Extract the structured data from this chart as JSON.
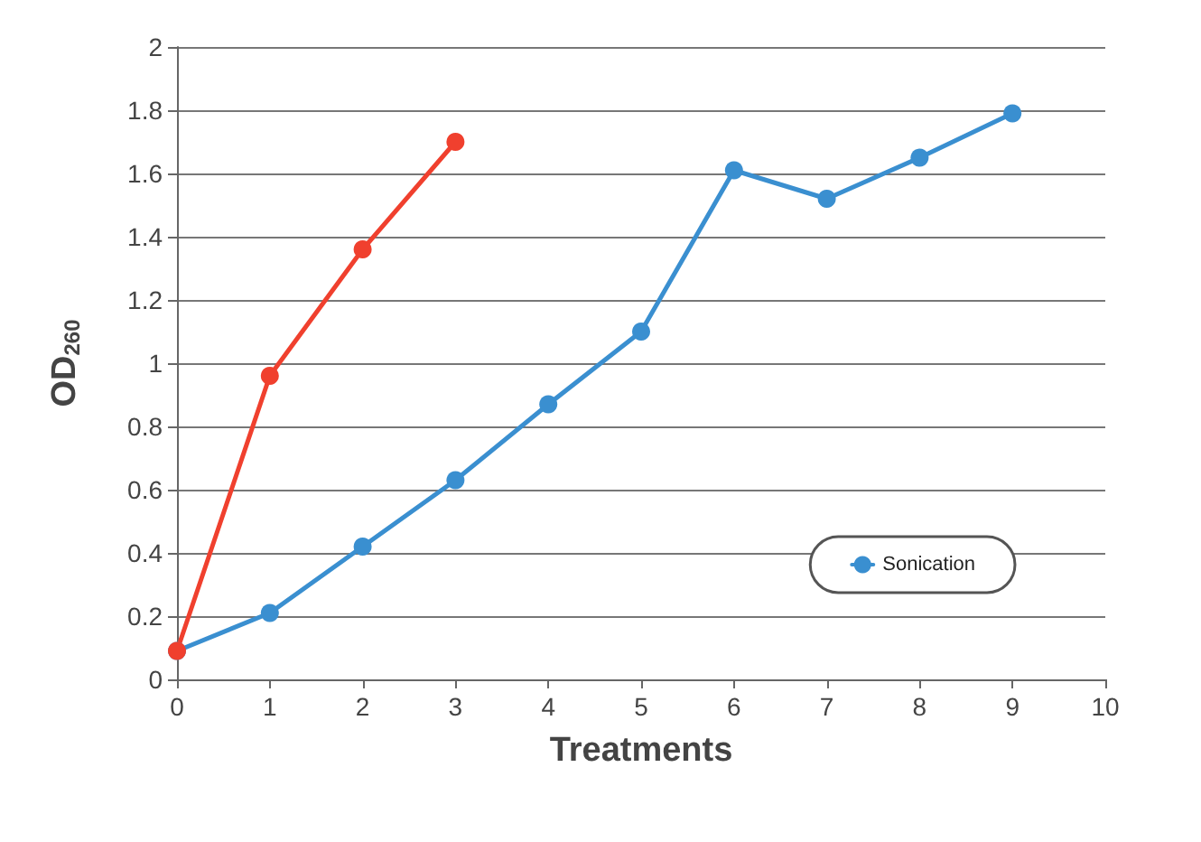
{
  "chart_data": {
    "type": "line",
    "xlabel": "Treatments",
    "ylabel": "OD$_{260}$",
    "series": [
      {
        "name": "Sonication",
        "color": "#3a8fd0",
        "x": [
          0,
          1,
          2,
          3,
          4,
          5,
          6,
          7,
          8,
          9
        ],
        "values": [
          0.09,
          0.21,
          0.42,
          0.63,
          0.87,
          1.1,
          1.61,
          1.52,
          1.65,
          1.79
        ]
      },
      {
        "color": "#f0402e",
        "x": [
          0,
          1,
          2,
          3
        ],
        "values": [
          0.09,
          0.96,
          1.36,
          1.7
        ]
      }
    ],
    "xlim": [
      0,
      10
    ],
    "xticks": [
      0,
      1,
      2,
      3,
      4,
      5,
      6,
      7,
      8,
      9,
      10
    ],
    "ylim": [
      0,
      2
    ],
    "yticks": [
      0,
      0.2,
      0.4,
      0.6,
      0.8,
      1,
      1.2,
      1.4,
      1.6,
      1.8,
      2
    ],
    "grid": "y",
    "legend": "bottom right",
    "marker": "circle",
    "line_style": "solid"
  }
}
